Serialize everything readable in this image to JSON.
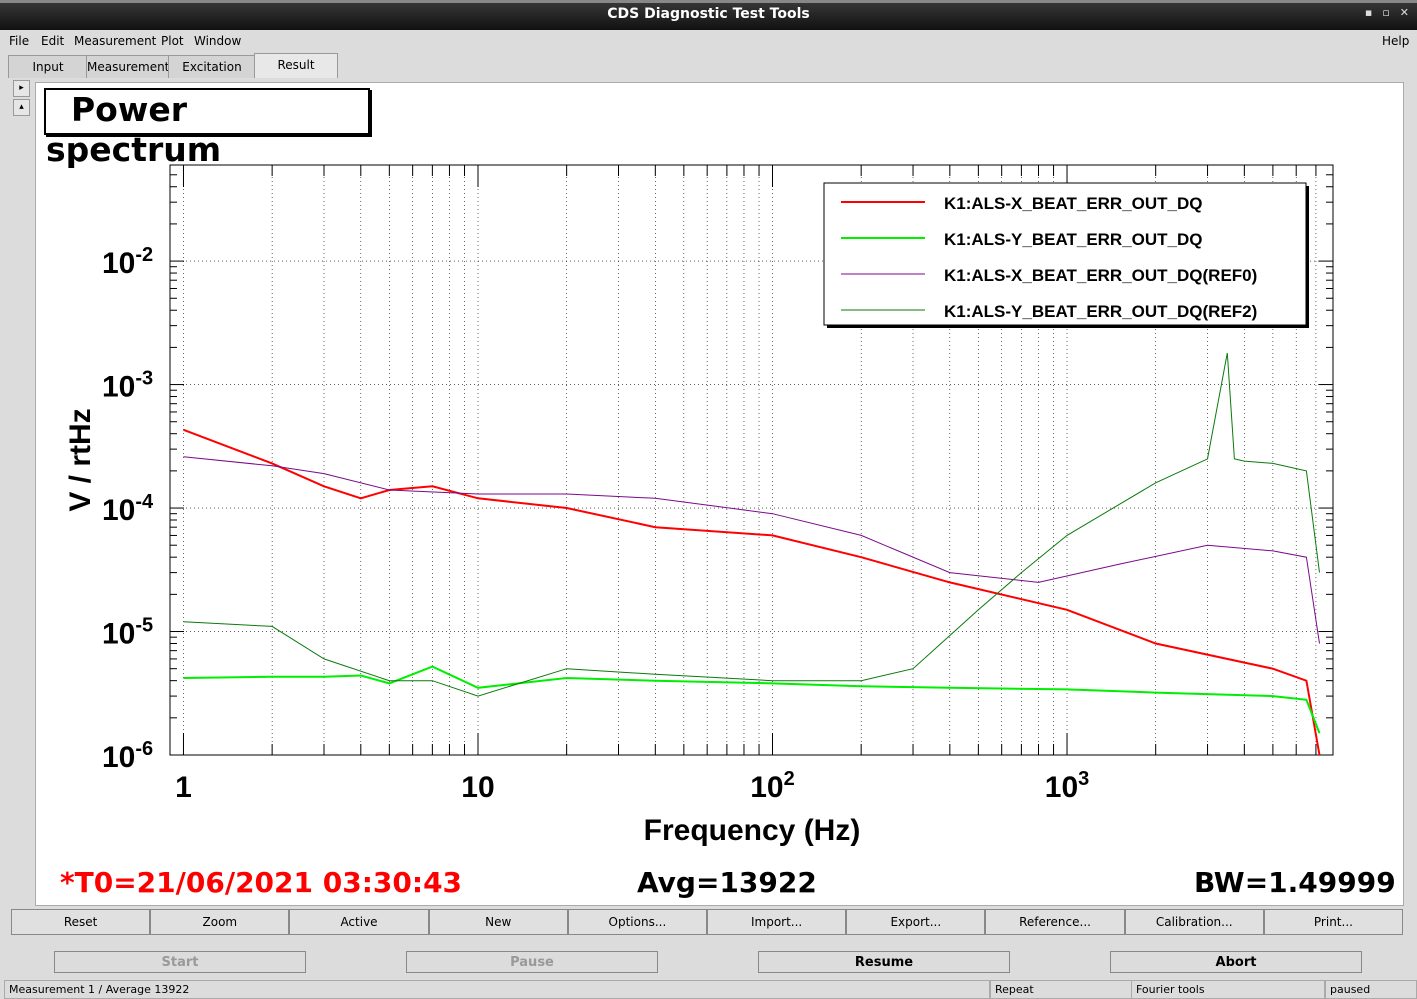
{
  "window": {
    "title": "CDS Diagnostic Test Tools"
  },
  "menu": {
    "file": "File",
    "edit": "Edit",
    "measurement": "Measurement",
    "plot": "Plot",
    "window": "Window",
    "help": "Help"
  },
  "tabs": [
    "Input",
    "Measurement",
    "Excitation",
    "Result"
  ],
  "active_tab": "Result",
  "plot": {
    "title": "Power spectrum"
  },
  "stats": {
    "t0": "*T0=21/06/2021 03:30:43",
    "avg": "Avg=13922",
    "bw": "BW=1.49999"
  },
  "buttons": [
    "Reset",
    "Zoom",
    "Active",
    "New",
    "Options...",
    "Import...",
    "Export...",
    "Reference...",
    "Calibration...",
    "Print..."
  ],
  "controls": {
    "start": "Start",
    "pause": "Pause",
    "resume": "Resume",
    "abort": "Abort"
  },
  "status": {
    "left": "Measurement 1 / Average 13922",
    "repeat": "Repeat",
    "tool": "Fourier tools",
    "state": "paused"
  },
  "colors": {
    "red": "#ff0000",
    "green": "#00ee00",
    "purple": "#7a0a8a",
    "darkgreen": "#0a7a0a",
    "t0": "#ff0000"
  },
  "chart_data": {
    "type": "line",
    "title": "Power spectrum",
    "xlabel": "Frequency (Hz)",
    "ylabel": "V / rtHz",
    "xscale": "log",
    "yscale": "log",
    "xlim": [
      0.9,
      8000
    ],
    "ylim": [
      1e-06,
      0.06
    ],
    "xticks": [
      "1",
      "10",
      "10^2",
      "10^3"
    ],
    "yticks": [
      "10^-6",
      "10^-5",
      "10^-4",
      "10^-3",
      "10^-2"
    ],
    "legend_position": "top-right",
    "series": [
      {
        "name": "K1:ALS-X_BEAT_ERR_OUT_DQ",
        "color": "#ff0000",
        "x": [
          1,
          2,
          3,
          4,
          5,
          7,
          10,
          20,
          40,
          100,
          200,
          400,
          1000,
          2000,
          5000,
          6500,
          7200
        ],
        "y": [
          0.00043,
          0.00023,
          0.00015,
          0.00012,
          0.00014,
          0.00015,
          0.00012,
          0.0001,
          7e-05,
          6e-05,
          4e-05,
          2.5e-05,
          1.5e-05,
          8e-06,
          5e-06,
          4e-06,
          1e-06
        ]
      },
      {
        "name": "K1:ALS-Y_BEAT_ERR_OUT_DQ",
        "color": "#00ee00",
        "x": [
          1,
          2,
          3,
          4,
          5,
          7,
          10,
          20,
          40,
          100,
          200,
          400,
          1000,
          2000,
          5000,
          6500,
          7200
        ],
        "y": [
          4.2e-06,
          4.3e-06,
          4.3e-06,
          4.4e-06,
          3.8e-06,
          5.2e-06,
          3.5e-06,
          4.2e-06,
          4e-06,
          3.8e-06,
          3.6e-06,
          3.5e-06,
          3.4e-06,
          3.2e-06,
          3e-06,
          2.8e-06,
          1.5e-06
        ]
      },
      {
        "name": "K1:ALS-X_BEAT_ERR_OUT_DQ(REF0)",
        "color": "#7a0a8a",
        "x": [
          1,
          2,
          3,
          5,
          10,
          20,
          40,
          100,
          200,
          400,
          800,
          1500,
          3000,
          5000,
          6500,
          7200
        ],
        "y": [
          0.00026,
          0.00022,
          0.00019,
          0.00014,
          0.00013,
          0.00013,
          0.00012,
          9e-05,
          6e-05,
          3e-05,
          2.5e-05,
          3.5e-05,
          5e-05,
          4.5e-05,
          4e-05,
          8e-06
        ]
      },
      {
        "name": "K1:ALS-Y_BEAT_ERR_OUT_DQ(REF2)",
        "color": "#0a7a0a",
        "x": [
          1,
          2,
          3,
          5,
          7,
          10,
          20,
          40,
          100,
          200,
          300,
          500,
          700,
          1000,
          2000,
          3000,
          3500,
          3700,
          4000,
          5000,
          6500,
          7200
        ],
        "y": [
          1.2e-05,
          1.1e-05,
          6e-06,
          4e-06,
          4e-06,
          3e-06,
          5e-06,
          4.5e-06,
          4e-06,
          4e-06,
          5e-06,
          1.5e-05,
          3e-05,
          6e-05,
          0.00016,
          0.00025,
          0.0018,
          0.00025,
          0.00024,
          0.00023,
          0.0002,
          3e-05
        ]
      }
    ]
  }
}
